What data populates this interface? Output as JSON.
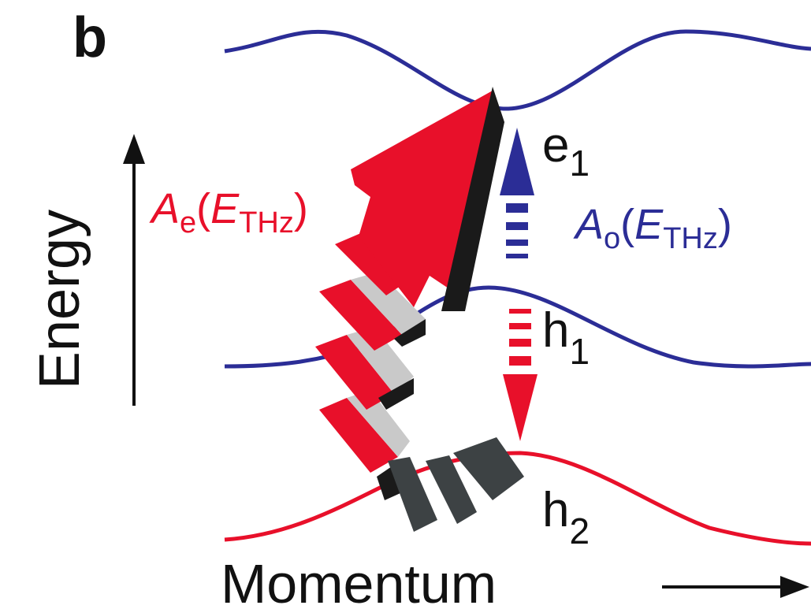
{
  "panel_label": "b",
  "axes": {
    "y_label": "Energy",
    "x_label": "Momentum"
  },
  "bands": [
    {
      "symbol": "e",
      "index": "1"
    },
    {
      "symbol": "h",
      "index": "1"
    },
    {
      "symbol": "h",
      "index": "2"
    }
  ],
  "processes": [
    {
      "parts": [
        "A",
        "e",
        "(",
        "E",
        "THz",
        ")"
      ]
    },
    {
      "parts": [
        "A",
        "o",
        "(",
        "E",
        "THz",
        ")"
      ]
    }
  ]
}
